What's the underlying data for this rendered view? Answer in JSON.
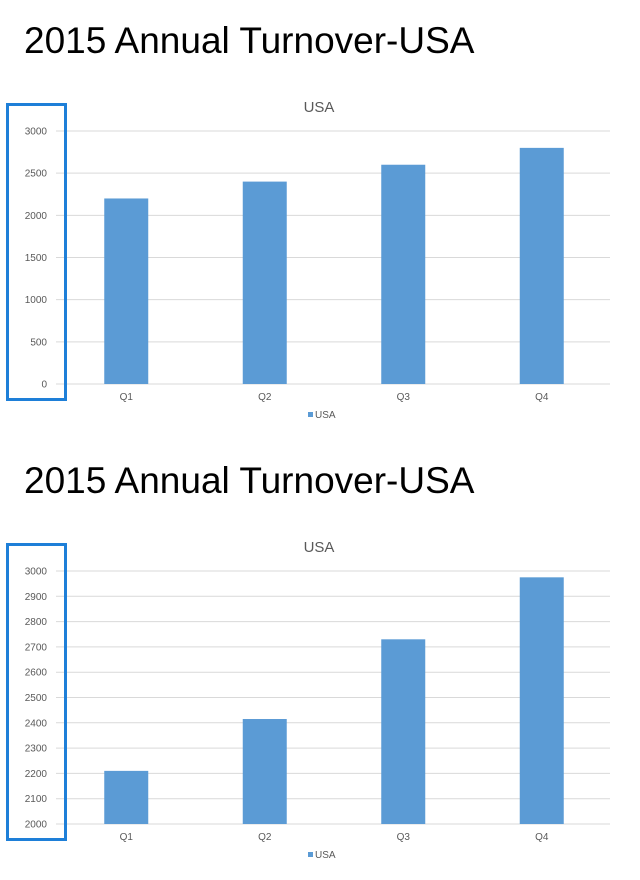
{
  "highlight_color": "#1e7fd8",
  "bar_color": "#5b9bd5",
  "grid_color": "#d9d9d9",
  "panels": [
    {
      "heading": "2015 Annual Turnover-USA",
      "chart_data": {
        "type": "bar",
        "title": "USA",
        "categories": [
          "Q1",
          "Q2",
          "Q3",
          "Q4"
        ],
        "series": [
          {
            "name": "USA",
            "values": [
              2200,
              2400,
              2600,
              2800
            ]
          }
        ],
        "yticks": [
          "0",
          "500",
          "1000",
          "1500",
          "2000",
          "2500",
          "3000"
        ],
        "ylim": [
          0,
          3000
        ],
        "grid": true,
        "legend": "bottom",
        "y_axis_highlighted": true
      }
    },
    {
      "heading": "2015 Annual Turnover-USA",
      "chart_data": {
        "type": "bar",
        "title": "USA",
        "categories": [
          "Q1",
          "Q2",
          "Q3",
          "Q4"
        ],
        "series": [
          {
            "name": "USA",
            "values": [
              2210,
              2415,
              2730,
              2975
            ]
          }
        ],
        "yticks": [
          "2000",
          "2100",
          "2200",
          "2300",
          "2400",
          "2500",
          "2600",
          "2700",
          "2800",
          "2900",
          "3000"
        ],
        "ylim": [
          2000,
          3000
        ],
        "grid": true,
        "legend": "bottom",
        "y_axis_highlighted": true
      }
    }
  ]
}
